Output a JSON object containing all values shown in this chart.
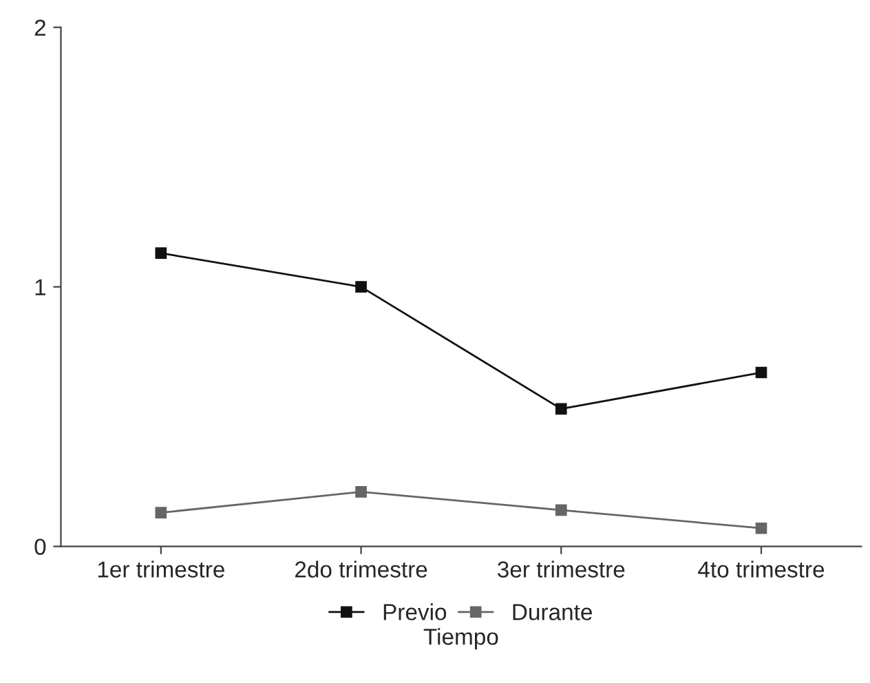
{
  "chart_data": {
    "type": "line",
    "xlabel": "Tiempo",
    "categories": [
      "1er trimestre",
      "2do trimestre",
      "3er trimestre",
      "4to trimestre"
    ],
    "series": [
      {
        "name": "Previo",
        "color": "#111111",
        "values": [
          1.13,
          1.0,
          0.53,
          0.67
        ]
      },
      {
        "name": "Durante",
        "color": "#666666",
        "values": [
          0.13,
          0.21,
          0.14,
          0.07
        ]
      }
    ],
    "ylim": [
      0,
      2
    ],
    "yticks": [
      0,
      1,
      2
    ],
    "grid": false,
    "legend": "bottom",
    "marker": "square",
    "line_style": "solid"
  }
}
